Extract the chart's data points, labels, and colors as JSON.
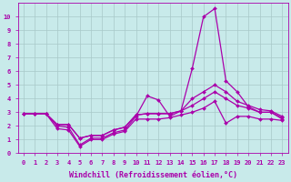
{
  "bg_color": "#c8eaea",
  "grid_color": "#a8c8c8",
  "line_color": "#aa00aa",
  "xlabel": "Windchill (Refroidissement éolien,°C)",
  "xlim": [
    -0.5,
    23.5
  ],
  "ylim": [
    0,
    11
  ],
  "xticks": [
    0,
    1,
    2,
    3,
    4,
    5,
    6,
    7,
    8,
    9,
    10,
    11,
    12,
    13,
    14,
    15,
    16,
    17,
    18,
    19,
    20,
    21,
    22,
    23
  ],
  "yticks": [
    0,
    1,
    2,
    3,
    4,
    5,
    6,
    7,
    8,
    9,
    10
  ],
  "series": [
    {
      "y": [
        2.9,
        2.9,
        2.9,
        2.0,
        1.9,
        0.6,
        1.1,
        1.1,
        1.5,
        1.7,
        2.7,
        4.2,
        3.9,
        2.7,
        3.1,
        6.2,
        10.0,
        10.6,
        5.3,
        4.5,
        3.4,
        3.0,
        3.0,
        2.5
      ],
      "marker": true
    },
    {
      "y": [
        2.9,
        2.9,
        2.9,
        2.1,
        2.1,
        1.1,
        1.3,
        1.3,
        1.7,
        1.9,
        2.8,
        2.9,
        2.9,
        2.9,
        3.1,
        4.0,
        4.5,
        5.0,
        4.5,
        3.8,
        3.5,
        3.2,
        3.1,
        2.7
      ],
      "marker": true
    },
    {
      "y": [
        2.9,
        2.9,
        2.9,
        2.1,
        2.1,
        1.1,
        1.3,
        1.3,
        1.7,
        1.9,
        2.8,
        2.9,
        2.9,
        2.9,
        3.1,
        3.5,
        4.0,
        4.5,
        4.0,
        3.5,
        3.3,
        3.0,
        3.0,
        2.6
      ],
      "marker": true
    },
    {
      "y": [
        2.9,
        2.9,
        2.9,
        1.8,
        1.7,
        0.5,
        1.0,
        1.0,
        1.4,
        1.6,
        2.5,
        2.5,
        2.5,
        2.6,
        2.8,
        3.0,
        3.3,
        3.8,
        2.2,
        2.7,
        2.7,
        2.5,
        2.5,
        2.4
      ],
      "marker": true
    }
  ],
  "markersize": 2.0,
  "linewidth": 0.9,
  "tick_fontsize": 5.0,
  "xlabel_fontsize": 6.0
}
